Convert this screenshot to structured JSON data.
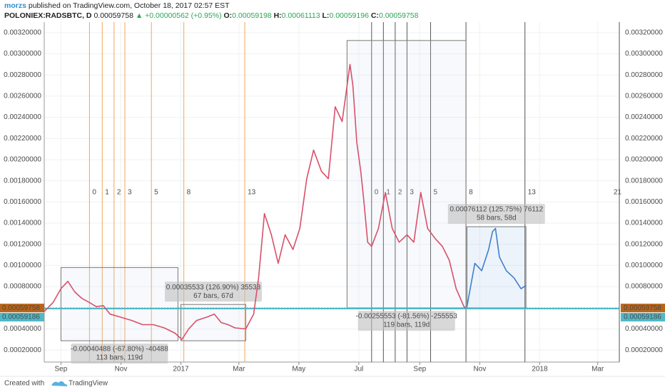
{
  "header": {
    "author": "morzs",
    "published": " published on TradingView.com, October 18, 2017 02:57 EST",
    "symbol": "POLONIEX:RADSBTC, D",
    "last": "0.00059758",
    "change": "▲ +0.00000562 (+0.95%)",
    "ohlc": [
      {
        "label": "O:",
        "value": "0.00059198"
      },
      {
        "label": "H:",
        "value": "0.00061113"
      },
      {
        "label": "L:",
        "value": "0.00059196"
      },
      {
        "label": "C:",
        "value": "0.00059758"
      }
    ]
  },
  "footer": {
    "created": "Created with",
    "brand": "TradingView"
  },
  "chart_data": {
    "type": "line",
    "xlim": [
      0,
      585
    ],
    "xticks": [
      {
        "value": 17,
        "label": "Sep"
      },
      {
        "value": 78,
        "label": "Nov"
      },
      {
        "value": 139,
        "label": "2017"
      },
      {
        "value": 198,
        "label": "Mar"
      },
      {
        "value": 259,
        "label": "May"
      },
      {
        "value": 320,
        "label": "Jul"
      },
      {
        "value": 382,
        "label": "Sep"
      },
      {
        "value": 443,
        "label": "Nov"
      },
      {
        "value": 504,
        "label": "2018"
      },
      {
        "value": 563,
        "label": "Mar"
      }
    ],
    "ylim": [
      0.0001,
      0.0033
    ],
    "yticks": [
      {
        "value": 0.0002,
        "label": "0.00020000"
      },
      {
        "value": 0.0004,
        "label": "0.00040000"
      },
      {
        "value": 0.0006,
        "label": "0.00060000"
      },
      {
        "value": 0.0008,
        "label": "0.00080000"
      },
      {
        "value": 0.001,
        "label": "0.00100000"
      },
      {
        "value": 0.0012,
        "label": "0.00120000"
      },
      {
        "value": 0.0014,
        "label": "0.00140000"
      },
      {
        "value": 0.0016,
        "label": "0.00160000"
      },
      {
        "value": 0.0018,
        "label": "0.00180000"
      },
      {
        "value": 0.002,
        "label": "0.00200000"
      },
      {
        "value": 0.0022,
        "label": "0.00220000"
      },
      {
        "value": 0.0024,
        "label": "0.00240000"
      },
      {
        "value": 0.0026,
        "label": "0.00260000"
      },
      {
        "value": 0.0028,
        "label": "0.00280000"
      },
      {
        "value": 0.003,
        "label": "0.00300000"
      },
      {
        "value": 0.0032,
        "label": "0.00320000"
      }
    ],
    "grid": true,
    "series": [
      {
        "color": "#d9506a",
        "x": [
          0,
          9,
          17,
          24,
          31,
          38,
          46,
          53,
          60,
          67,
          78,
          89,
          100,
          111,
          122,
          133,
          140,
          147,
          155,
          165,
          173,
          180,
          187,
          194,
          205,
          213,
          218,
          224,
          231,
          238,
          245,
          253,
          260,
          267,
          274,
          282,
          289,
          296,
          303,
          311,
          314,
          318,
          322,
          325,
          329,
          333,
          340,
          347,
          354,
          361,
          369,
          376,
          383,
          390,
          398,
          405,
          412,
          419,
          427,
          429
        ],
        "values": [
          0.000564,
          0.00065,
          0.00078,
          0.00085,
          0.00075,
          0.00069,
          0.00065,
          0.00061,
          0.00062,
          0.00054,
          0.00051,
          0.00048,
          0.00044,
          0.00044,
          0.00041,
          0.00036,
          0.0003,
          0.0004,
          0.00048,
          0.00051,
          0.00054,
          0.00046,
          0.00044,
          0.00041,
          0.0004,
          0.00054,
          0.00088,
          0.00149,
          0.00129,
          0.00102,
          0.00129,
          0.00115,
          0.00135,
          0.00182,
          0.00209,
          0.00189,
          0.00182,
          0.0025,
          0.00236,
          0.0029,
          0.0027,
          0.00216,
          0.00189,
          0.00162,
          0.00122,
          0.00118,
          0.00135,
          0.00169,
          0.00135,
          0.00122,
          0.00129,
          0.00122,
          0.00169,
          0.00135,
          0.00125,
          0.00118,
          0.00105,
          0.00078,
          0.00061,
          0.00059758
        ]
      },
      {
        "color": "#3f7fcf",
        "x": [
          430,
          438,
          445,
          452,
          456,
          459,
          463,
          470,
          478,
          485,
          490
        ],
        "values": [
          0.00061,
          0.00102,
          0.00095,
          0.00115,
          0.00132,
          0.00135,
          0.00108,
          0.00095,
          0.00088,
          0.00078,
          0.00081
        ]
      }
    ],
    "price_lines": [
      {
        "value": 0.00059758,
        "label": "0.00059758",
        "color": "#b8651b"
      },
      {
        "value": 0.00059186,
        "label": "0.00059186",
        "color": "#4fb9c8"
      }
    ],
    "time_zones": [
      {
        "color": "#f3a55a",
        "zones": [
          {
            "x": 46,
            "label": "0"
          },
          {
            "x": 59,
            "label": "1"
          },
          {
            "x": 71,
            "label": "2"
          },
          {
            "x": 82,
            "label": "3"
          },
          {
            "x": 109,
            "label": "5"
          },
          {
            "x": 142,
            "label": "8"
          },
          {
            "x": 204,
            "label": "13"
          }
        ]
      },
      {
        "color": "#555555",
        "zones": [
          {
            "x": 333,
            "label": "0"
          },
          {
            "x": 345,
            "label": "1"
          },
          {
            "x": 357,
            "label": "2"
          },
          {
            "x": 369,
            "label": "3"
          },
          {
            "x": 393,
            "label": "5"
          },
          {
            "x": 429,
            "label": "8"
          },
          {
            "x": 489,
            "label": "13"
          },
          {
            "x": 585,
            "label": "21"
          }
        ]
      }
    ],
    "measures": [
      {
        "x0": 17,
        "x1": 136,
        "y0": 0.000288,
        "y1": 0.00098,
        "line1": "-0.00040488 (-67.80%) -40488",
        "line2": "113 bars, 119d",
        "side": "below",
        "color": "#777777"
      },
      {
        "x0": 139,
        "x1": 205,
        "y0": 0.000288,
        "y1": 0.000631,
        "line1": "0.00035533 (126.90%) 35533",
        "line2": "67 bars, 67d",
        "side": "above",
        "color": "#777777"
      },
      {
        "x0": 308,
        "x1": 429,
        "y0": 0.000598,
        "y1": 0.003126,
        "line1": "-0.00255553 (-81.56%) -255553",
        "line2": "119 bars, 119d",
        "side": "below",
        "color": "#777777"
      },
      {
        "x0": 430,
        "x1": 490,
        "y0": 0.000598,
        "y1": 0.001366,
        "line1": "0.00076112 (125.75%) 76112",
        "line2": "58 bars, 58d",
        "side": "above",
        "color": "#777777"
      }
    ]
  }
}
